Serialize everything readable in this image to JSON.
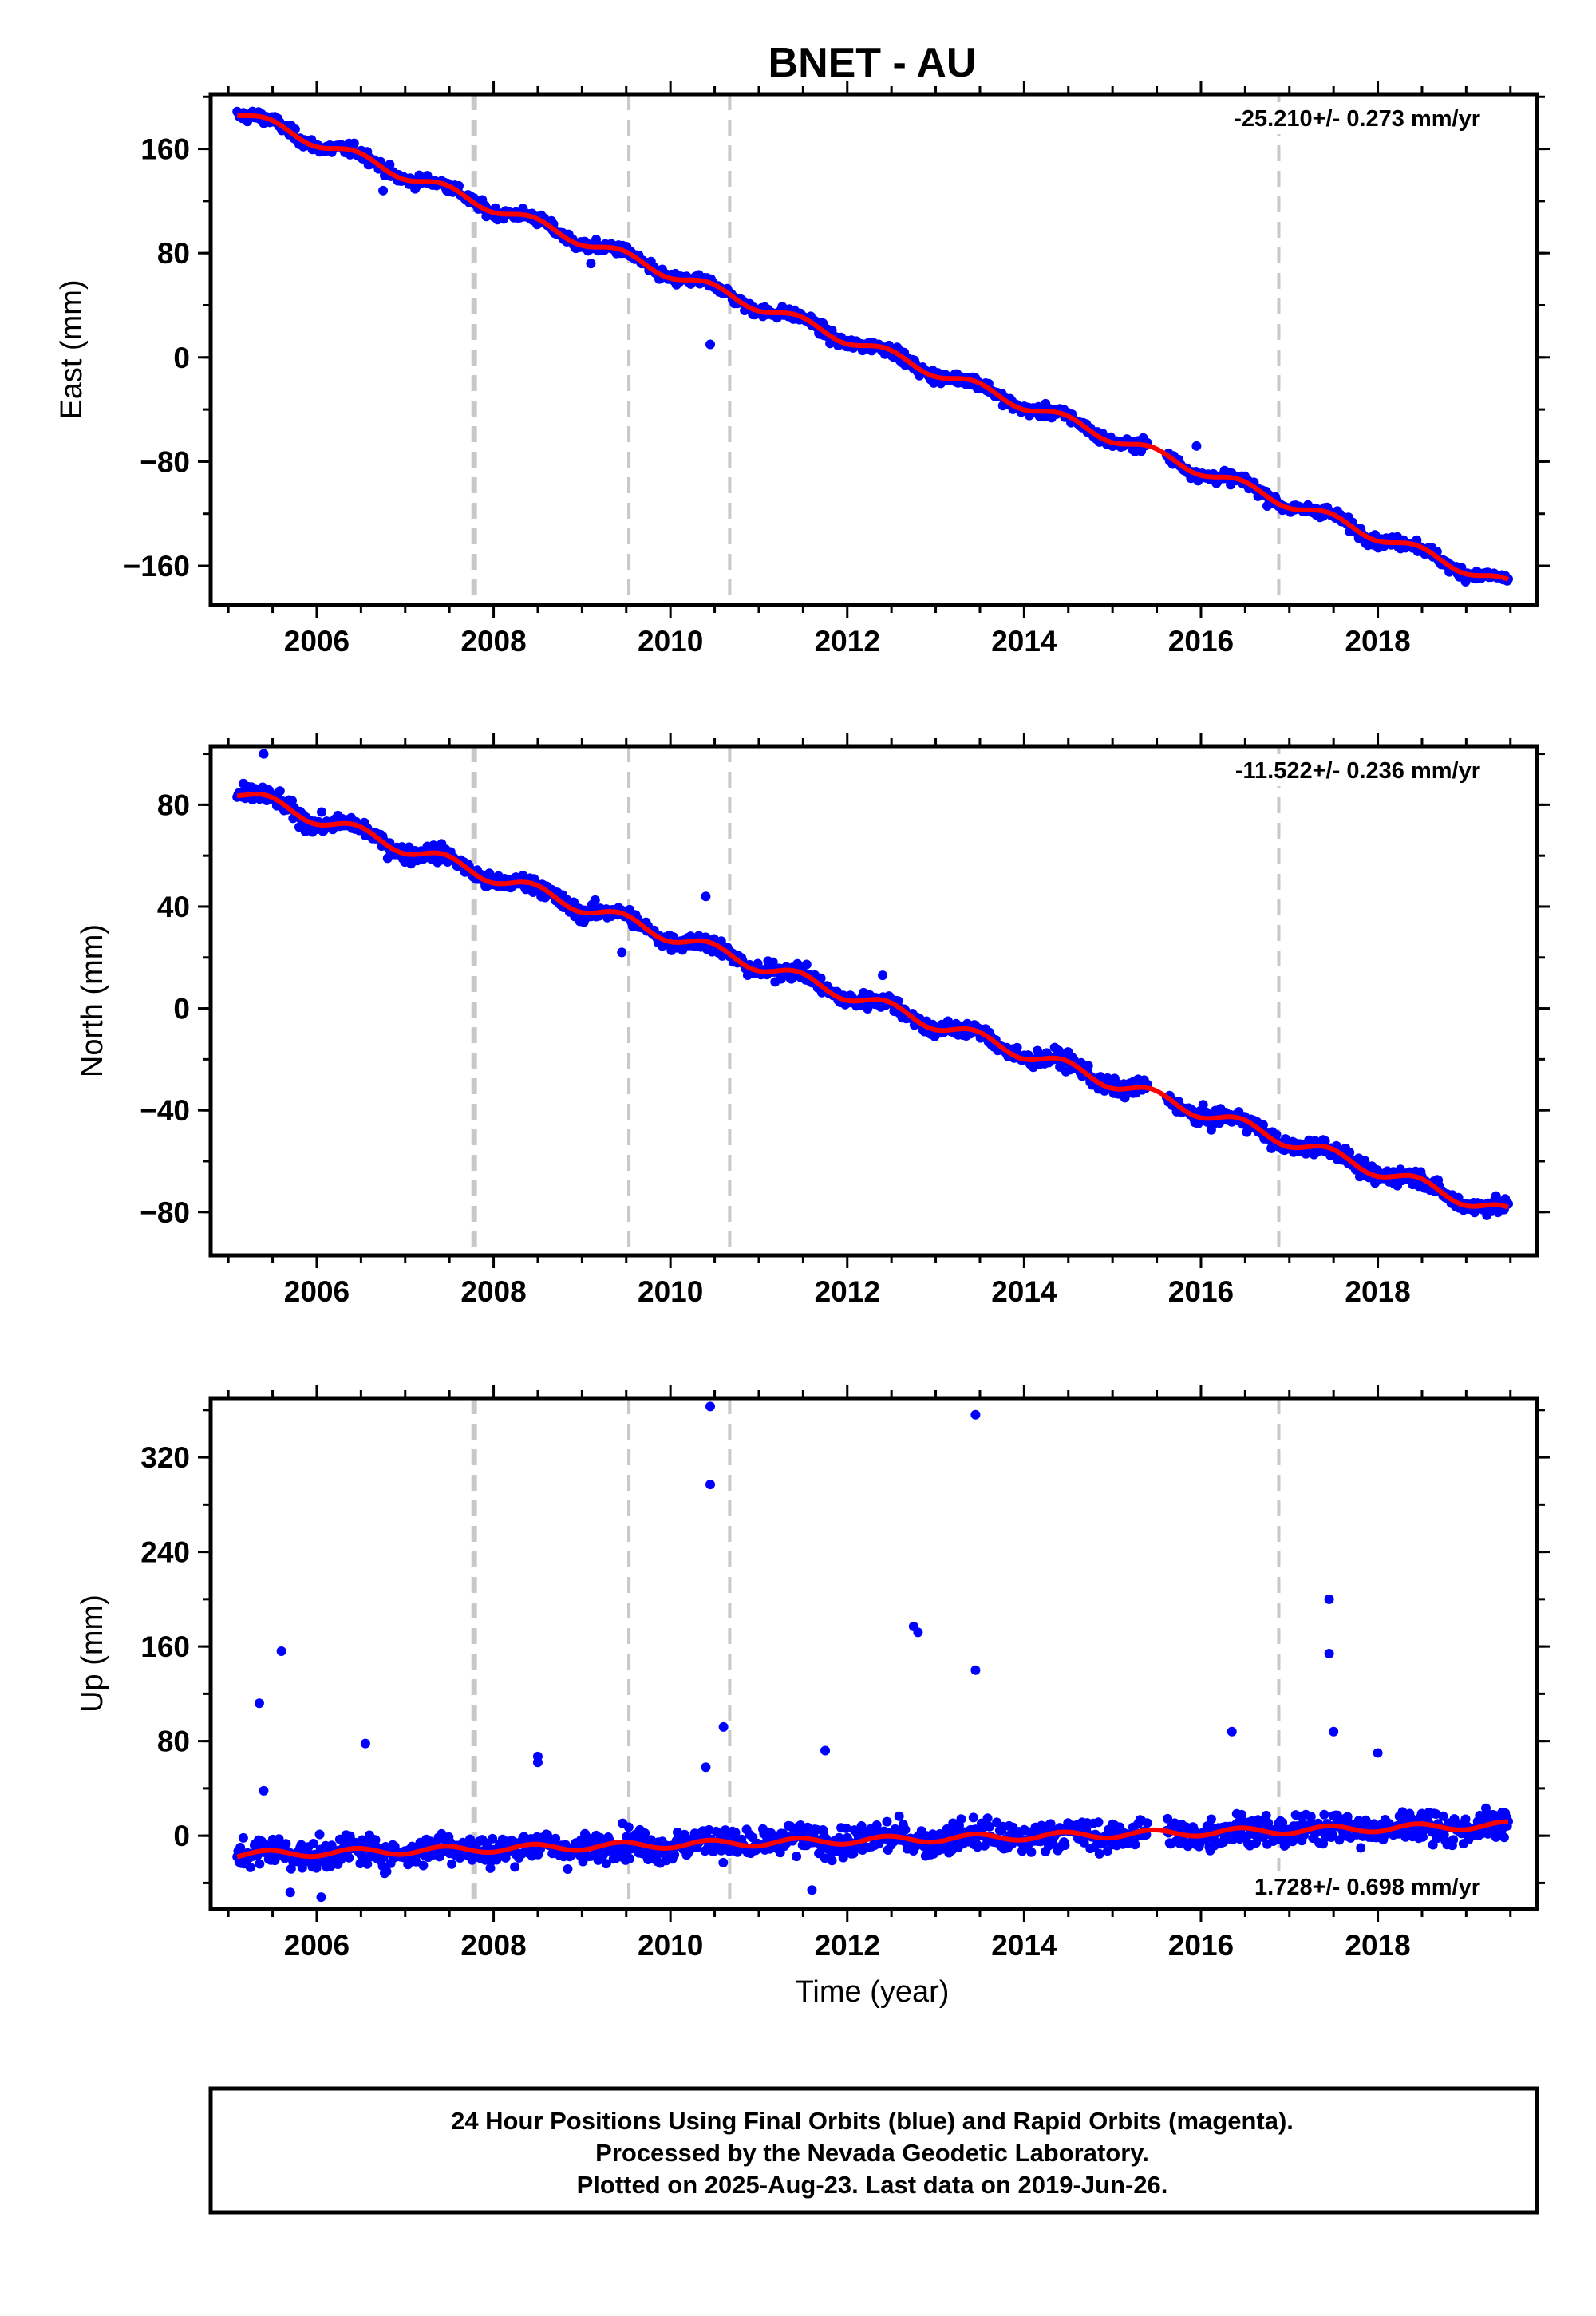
{
  "title": "BNET - AU",
  "xlabel": "Time (year)",
  "footer": {
    "line1": "24 Hour Positions Using Final Orbits (blue) and Rapid Orbits (magenta).",
    "line2": "Processed by the Nevada Geodetic Laboratory.",
    "line3": "Plotted on 2025-Aug-23. Last data on 2019-Jun-26."
  },
  "colors": {
    "final_orbits": "#0000ff",
    "model_fit": "#ff0000",
    "event_lines": "#c8c8c8",
    "axes": "#000000"
  },
  "chart_data": [
    {
      "type": "scatter",
      "ylabel": "East (mm)",
      "rate_label": "-25.210+/- 0.273 mm/yr",
      "xlim": [
        2004.8,
        2019.8
      ],
      "ylim": [
        -190,
        202
      ],
      "x_ticks": [
        2006,
        2008,
        2010,
        2012,
        2014,
        2016,
        2018
      ],
      "y_ticks": [
        160,
        80,
        0,
        -80,
        -160
      ],
      "event_lines": [
        2007.78,
        2009.53,
        2010.67,
        2016.88
      ],
      "data_gap": [
        2015.4,
        2015.6
      ],
      "trend": {
        "start_year": 2005.1,
        "start_value": 188,
        "rate_mm_per_yr": -25.21
      },
      "outliers": [
        {
          "x": 2010.45,
          "y": 10
        },
        {
          "x": 2015.95,
          "y": -68
        },
        {
          "x": 2006.75,
          "y": 128
        },
        {
          "x": 2009.1,
          "y": 72
        }
      ],
      "series": [
        {
          "values_shown": "daily positions",
          "color": "#0000ff"
        },
        {
          "values_shown": "model fit",
          "color": "#ff0000"
        }
      ]
    },
    {
      "type": "scatter",
      "ylabel": "North (mm)",
      "rate_label": "-11.522+/- 0.236 mm/yr",
      "xlim": [
        2004.8,
        2019.8
      ],
      "ylim": [
        -97,
        103
      ],
      "x_ticks": [
        2006,
        2008,
        2010,
        2012,
        2014,
        2016,
        2018
      ],
      "y_ticks": [
        80,
        40,
        0,
        -40,
        -80
      ],
      "event_lines": [
        2007.78,
        2009.53,
        2010.67,
        2016.88
      ],
      "data_gap": [
        2015.4,
        2015.6
      ],
      "trend": {
        "start_year": 2005.1,
        "start_value": 85,
        "rate_mm_per_yr": -11.52
      },
      "outliers": [
        {
          "x": 2005.4,
          "y": 100
        },
        {
          "x": 2009.45,
          "y": 22
        },
        {
          "x": 2010.4,
          "y": 44
        },
        {
          "x": 2012.4,
          "y": 13
        }
      ],
      "series": [
        {
          "values_shown": "daily positions",
          "color": "#0000ff"
        },
        {
          "values_shown": "model fit",
          "color": "#ff0000"
        }
      ]
    },
    {
      "type": "scatter",
      "ylabel": "Up (mm)",
      "rate_label": "1.728+/- 0.698 mm/yr",
      "xlim": [
        2004.8,
        2019.8
      ],
      "ylim": [
        -62,
        370
      ],
      "x_ticks": [
        2006,
        2008,
        2010,
        2012,
        2014,
        2016,
        2018
      ],
      "y_ticks": [
        320,
        240,
        160,
        80,
        0
      ],
      "event_lines": [
        2007.78,
        2009.53,
        2010.67,
        2016.88
      ],
      "data_gap": [
        2015.4,
        2015.6
      ],
      "trend": {
        "start_year": 2005.1,
        "start_value": -16,
        "rate_mm_per_yr": 1.728
      },
      "outliers": [
        {
          "x": 2005.35,
          "y": 112
        },
        {
          "x": 2005.6,
          "y": 156
        },
        {
          "x": 2005.4,
          "y": 38
        },
        {
          "x": 2006.55,
          "y": 78
        },
        {
          "x": 2008.5,
          "y": 67
        },
        {
          "x": 2008.5,
          "y": 62
        },
        {
          "x": 2010.45,
          "y": 363
        },
        {
          "x": 2010.45,
          "y": 297
        },
        {
          "x": 2010.6,
          "y": 92
        },
        {
          "x": 2010.4,
          "y": 58
        },
        {
          "x": 2011.75,
          "y": 72
        },
        {
          "x": 2011.6,
          "y": -46
        },
        {
          "x": 2012.75,
          "y": 177
        },
        {
          "x": 2012.8,
          "y": 172
        },
        {
          "x": 2013.45,
          "y": 356
        },
        {
          "x": 2013.45,
          "y": 140
        },
        {
          "x": 2016.35,
          "y": 88
        },
        {
          "x": 2017.45,
          "y": 200
        },
        {
          "x": 2017.45,
          "y": 154
        },
        {
          "x": 2017.5,
          "y": 88
        },
        {
          "x": 2018.0,
          "y": 70
        },
        {
          "x": 2006.05,
          "y": -52
        },
        {
          "x": 2005.7,
          "y": -48
        }
      ],
      "series": [
        {
          "values_shown": "daily positions",
          "color": "#0000ff"
        },
        {
          "values_shown": "model fit",
          "color": "#ff0000"
        }
      ]
    }
  ]
}
